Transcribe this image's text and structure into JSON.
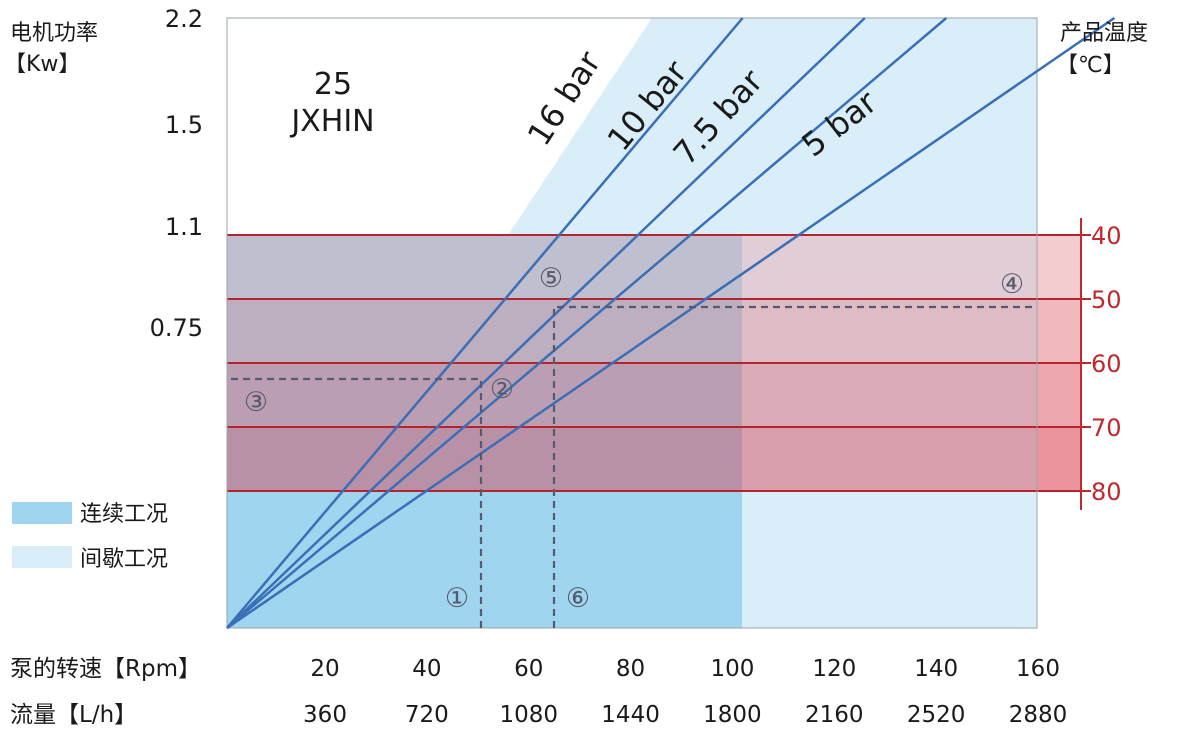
{
  "chart_data": {
    "type": "line",
    "model": {
      "number": "25",
      "name": "JXHIN"
    },
    "y_axis_left": {
      "title": "电机功率",
      "unit": "【Kw】",
      "ticks": [
        "2.2",
        "1.5",
        "1.1",
        "0.75"
      ]
    },
    "y_axis_right": {
      "title": "产品温度",
      "unit": "【℃】",
      "ticks": [
        "40",
        "50",
        "60",
        "70",
        "80"
      ]
    },
    "x_axis_speed": {
      "title": "泵的转速【Rpm】",
      "ticks": [
        "20",
        "40",
        "60",
        "80",
        "100",
        "120",
        "140",
        "160"
      ]
    },
    "x_axis_flow": {
      "title": "流量【L/h】",
      "ticks": [
        "360",
        "720",
        "1080",
        "1440",
        "1800",
        "2160",
        "2520",
        "2880"
      ]
    },
    "series": [
      {
        "name": "16 bar",
        "x_at_top": 102
      },
      {
        "name": "10 bar",
        "x_at_top": 126
      },
      {
        "name": "7.5 bar",
        "x_at_top": 142
      },
      {
        "name": "5 bar",
        "x_at_top": 175
      }
    ],
    "regions": {
      "continuous": {
        "label": "连续工况",
        "speed_max": 100,
        "color": "#9fd5ee"
      },
      "intermittent": {
        "label": "间歇工况",
        "speed_max": 160,
        "color": "#d9eef9"
      }
    },
    "temperature_bands": [
      {
        "from": 40,
        "to": 50,
        "color": "#e9a3a8"
      },
      {
        "from": 50,
        "to": 60,
        "color": "#e37f88"
      },
      {
        "from": 60,
        "to": 70,
        "color": "#de5c69"
      },
      {
        "from": 70,
        "to": 80,
        "color": "#d93d4e"
      }
    ],
    "example_markers": [
      "①",
      "②",
      "③",
      "④",
      "⑤",
      "⑥"
    ],
    "example_lines": {
      "speed_1": 50,
      "speed_6": 65,
      "temperature_4": 51
    },
    "colors": {
      "line": "#3a6fb8",
      "temp_axis": "#c0282d",
      "dash": "#555a6e"
    }
  }
}
